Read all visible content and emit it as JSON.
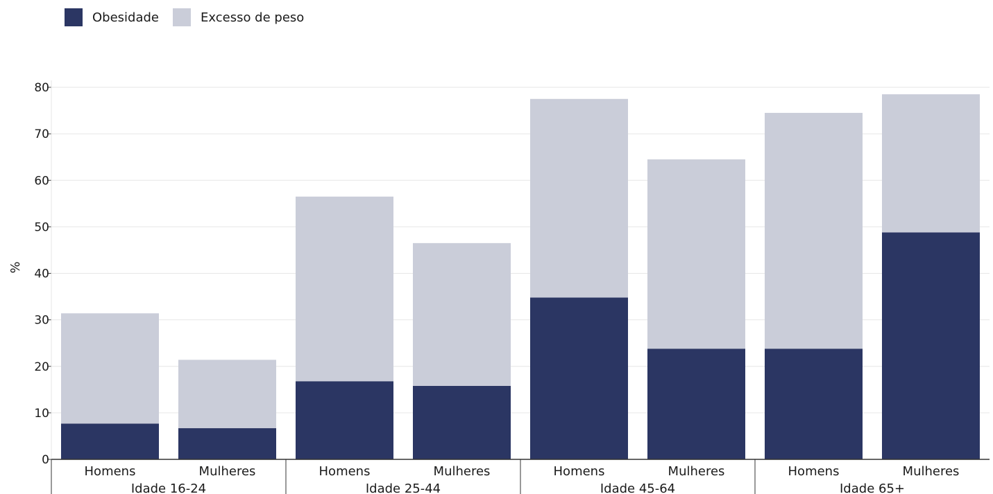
{
  "chart_data": {
    "type": "bar",
    "stacked": true,
    "groups": [
      {
        "label": "Idade 16-24",
        "categories": [
          "Homens",
          "Mulheres"
        ]
      },
      {
        "label": "Idade 25-44",
        "categories": [
          "Homens",
          "Mulheres"
        ]
      },
      {
        "label": "Idade 45-64",
        "categories": [
          "Homens",
          "Mulheres"
        ]
      },
      {
        "label": "Idade 65+",
        "categories": [
          "Homens",
          "Mulheres"
        ]
      }
    ],
    "series": [
      {
        "name": "Obesidade",
        "color": "#2b3663",
        "values": [
          7.7,
          6.7,
          16.8,
          15.8,
          34.8,
          23.8,
          23.8,
          48.8
        ]
      },
      {
        "name": "Excesso de peso",
        "color": "#cacdd9",
        "values": [
          23.7,
          14.7,
          39.7,
          30.7,
          42.7,
          40.7,
          50.7,
          29.7
        ]
      }
    ],
    "ylabel": "%",
    "ylim": [
      0,
      80
    ],
    "yticks": [
      0,
      10,
      20,
      30,
      40,
      50,
      60,
      70,
      80
    ],
    "grid": true,
    "legend_position": "top-left"
  }
}
